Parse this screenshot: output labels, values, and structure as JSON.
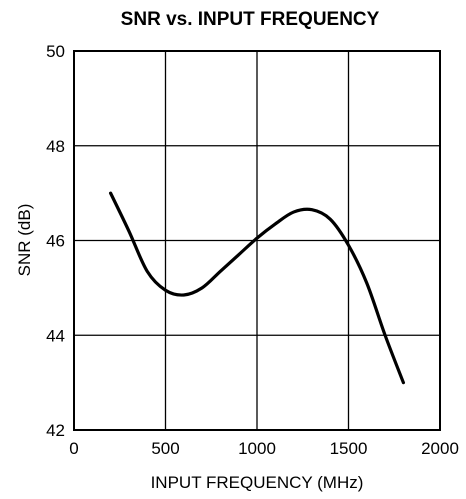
{
  "chart_data": {
    "type": "line",
    "title": "SNR vs. INPUT FREQUENCY",
    "xlabel": "INPUT FREQUENCY (MHz)",
    "ylabel": "SNR (dB)",
    "xlim": [
      0,
      2000
    ],
    "ylim": [
      42,
      50
    ],
    "xticks": [
      0,
      500,
      1000,
      1500,
      2000
    ],
    "yticks": [
      42,
      44,
      46,
      48,
      50
    ],
    "xtick_labels": [
      "0",
      "500",
      "1000",
      "1500",
      "2000"
    ],
    "ytick_labels": [
      "42",
      "44",
      "46",
      "48",
      "50"
    ],
    "grid": true,
    "series": [
      {
        "x": [
          200,
          300,
          400,
          500,
          600,
          700,
          800,
          900,
          1000,
          1100,
          1200,
          1300,
          1400,
          1500,
          1600,
          1700,
          1800
        ],
        "values": [
          47.0,
          46.2,
          45.35,
          44.95,
          44.85,
          45.0,
          45.35,
          45.7,
          46.05,
          46.35,
          46.6,
          46.65,
          46.45,
          45.9,
          45.1,
          44.0,
          43.0
        ]
      }
    ]
  }
}
